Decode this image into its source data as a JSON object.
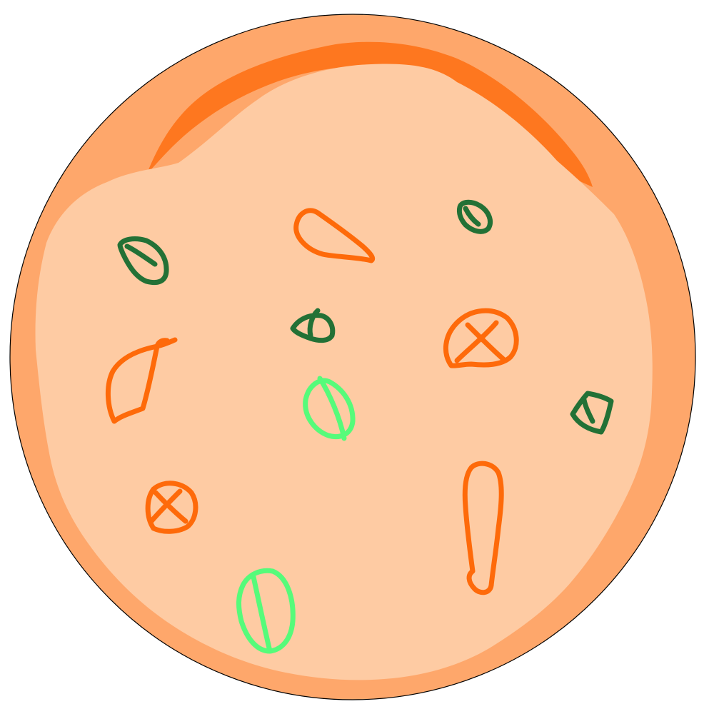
{
  "colors": {
    "background": "#ffffff",
    "crust_outer": "#fea76b",
    "crust_burnt": "#fe771f",
    "sauce_base": "#fecba3",
    "outline": "#000000",
    "orange_topping": "#fe6a0a",
    "dark_green_topping": "#237136",
    "light_green_topping": "#56fb7a"
  },
  "toppings": {
    "orange": [
      "teardrop",
      "leaf",
      "circle-with-cross",
      "small-circle-with-cross",
      "long-teardrop"
    ],
    "dark_green": [
      "basil-leaf",
      "small-leaf",
      "eye-shape",
      "wedge"
    ],
    "light_green": [
      "oval-with-line",
      "large-oval-with-line"
    ]
  }
}
